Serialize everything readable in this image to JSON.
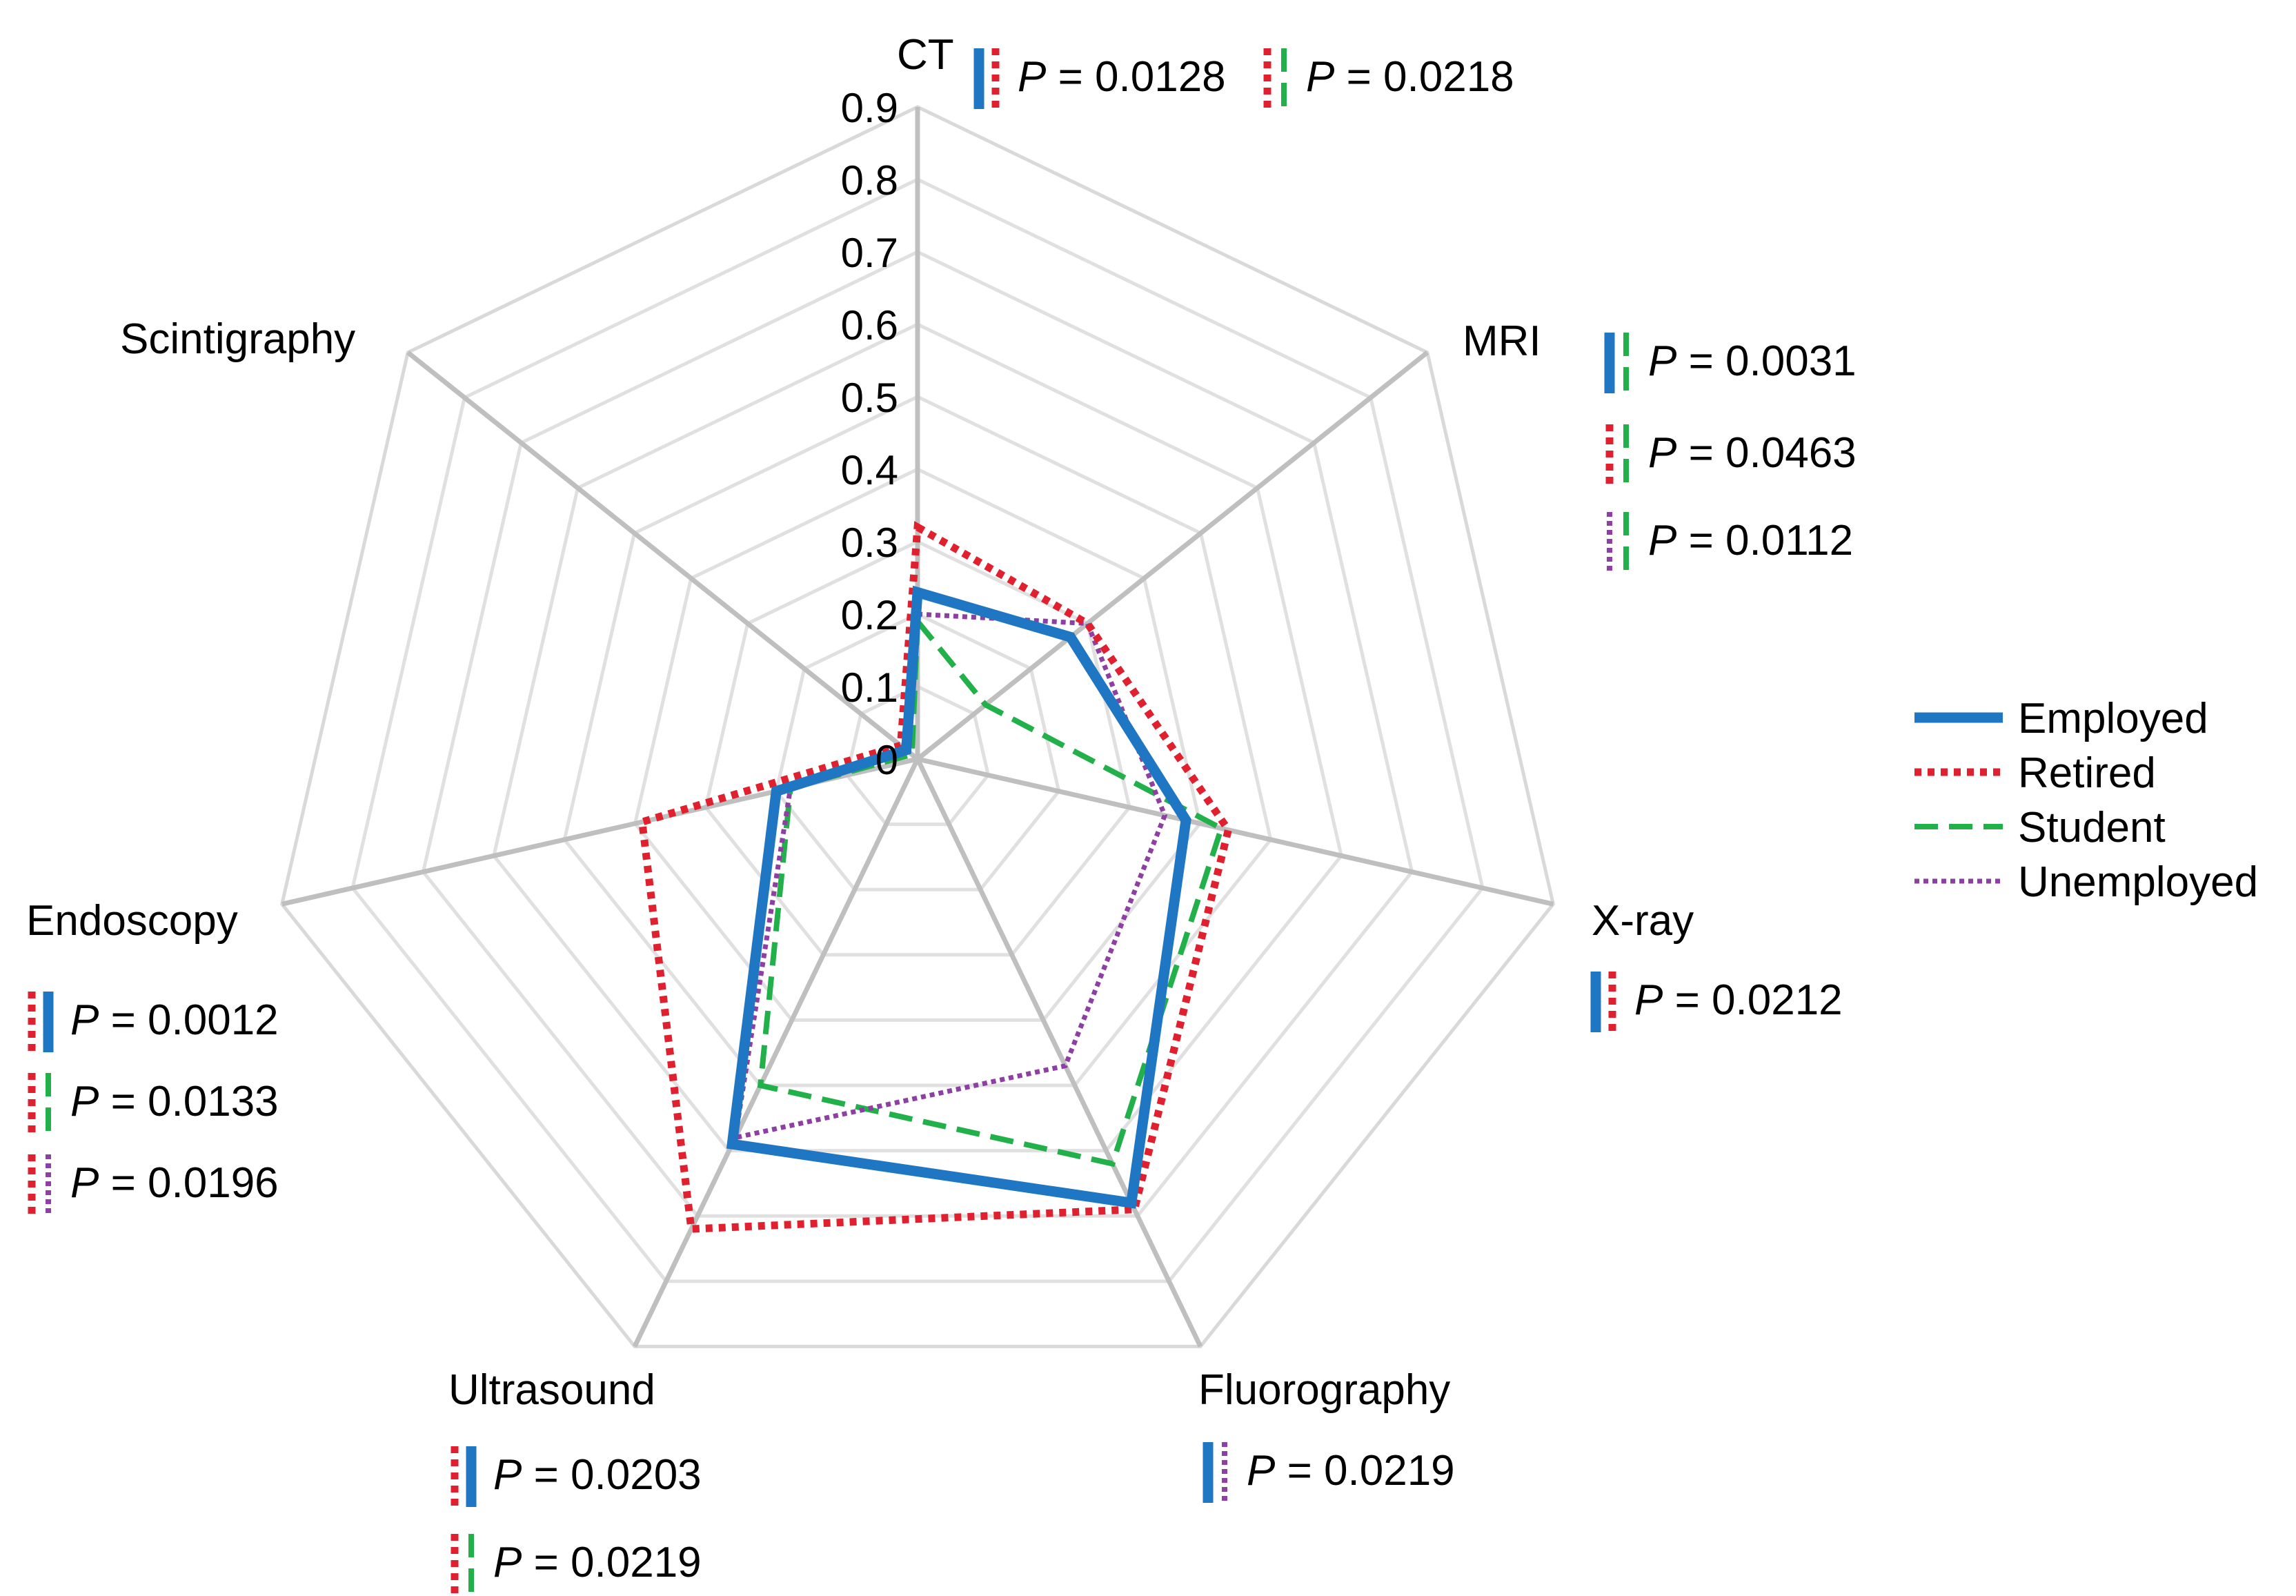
{
  "chart_data": {
    "type": "radar",
    "axes": [
      "CT",
      "MRI",
      "X-ray",
      "Fluorography",
      "Ultrasound",
      "Endoscopy",
      "Scintigraphy"
    ],
    "rlim": [
      0,
      0.9
    ],
    "ticks": [
      "0",
      "0.1",
      "0.2",
      "0.3",
      "0.4",
      "0.5",
      "0.6",
      "0.7",
      "0.8",
      "0.9"
    ],
    "grid": true,
    "legend_position": "right",
    "series": [
      {
        "name": "Employed",
        "color": "#1f77c4",
        "line": "solid",
        "values": [
          0.23,
          0.27,
          0.38,
          0.68,
          0.59,
          0.2,
          0.02
        ]
      },
      {
        "name": "Retired",
        "color": "#e0202e",
        "line": "dotted",
        "values": [
          0.32,
          0.3,
          0.44,
          0.69,
          0.72,
          0.39,
          0.03
        ]
      },
      {
        "name": "Student",
        "color": "#22b04a",
        "line": "dashed",
        "values": [
          0.19,
          0.12,
          0.43,
          0.62,
          0.5,
          0.18,
          0.01
        ]
      },
      {
        "name": "Unemployed",
        "color": "#8e3fa3",
        "line": "dotted-fine",
        "values": [
          0.2,
          0.3,
          0.35,
          0.47,
          0.58,
          0.18,
          0.02
        ]
      }
    ],
    "p_values": [
      {
        "axis": "CT",
        "p": "0.0128",
        "pair": [
          "Employed",
          "Retired"
        ]
      },
      {
        "axis": "CT",
        "p": "0.0218",
        "pair": [
          "Retired",
          "Student"
        ]
      },
      {
        "axis": "MRI",
        "p": "0.0031",
        "pair": [
          "Employed",
          "Student"
        ]
      },
      {
        "axis": "MRI",
        "p": "0.0463",
        "pair": [
          "Retired",
          "Student"
        ]
      },
      {
        "axis": "MRI",
        "p": "0.0112",
        "pair": [
          "Unemployed",
          "Student"
        ]
      },
      {
        "axis": "X-ray",
        "p": "0.0212",
        "pair": [
          "Employed",
          "Retired"
        ]
      },
      {
        "axis": "Fluorography",
        "p": "0.0219",
        "pair": [
          "Employed",
          "Unemployed"
        ]
      },
      {
        "axis": "Ultrasound",
        "p": "0.0203",
        "pair": [
          "Retired",
          "Employed"
        ]
      },
      {
        "axis": "Ultrasound",
        "p": "0.0219",
        "pair": [
          "Retired",
          "Student"
        ]
      },
      {
        "axis": "Endoscopy",
        "p": "0.0012",
        "pair": [
          "Retired",
          "Employed"
        ]
      },
      {
        "axis": "Endoscopy",
        "p": "0.0133",
        "pair": [
          "Retired",
          "Student"
        ]
      },
      {
        "axis": "Endoscopy",
        "p": "0.0196",
        "pair": [
          "Retired",
          "Unemployed"
        ]
      }
    ]
  },
  "p_prefix": "P",
  "p_equals": " = "
}
